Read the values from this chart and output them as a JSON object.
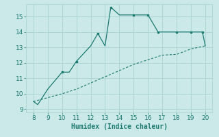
{
  "line1_x": [
    8,
    8.3,
    9,
    10,
    10.5,
    11,
    12,
    12.5,
    13,
    13.4,
    14,
    15,
    16,
    16.7,
    17,
    18,
    19,
    19.8,
    20
  ],
  "line1_y": [
    9.5,
    9.3,
    10.3,
    11.4,
    11.4,
    12.1,
    13.1,
    13.9,
    13.1,
    15.6,
    15.1,
    15.1,
    15.1,
    14.0,
    14.0,
    14.0,
    14.0,
    14.0,
    13.1
  ],
  "line2_x": [
    8,
    9,
    10,
    11,
    12,
    13,
    14,
    15,
    16,
    17,
    18,
    19,
    20
  ],
  "line2_y": [
    9.5,
    9.75,
    10.0,
    10.3,
    10.7,
    11.1,
    11.5,
    11.9,
    12.2,
    12.5,
    12.55,
    12.9,
    13.1
  ],
  "line_color": "#1a7a6e",
  "bg_color": "#cce9e9",
  "grid_color": "#aed4d4",
  "xlabel": "Humidex (Indice chaleur)",
  "xlim": [
    7.5,
    20.5
  ],
  "ylim": [
    8.8,
    15.8
  ],
  "xticks": [
    8,
    9,
    10,
    11,
    12,
    13,
    14,
    15,
    16,
    17,
    18,
    19,
    20
  ],
  "yticks": [
    9,
    10,
    11,
    12,
    13,
    14,
    15
  ]
}
